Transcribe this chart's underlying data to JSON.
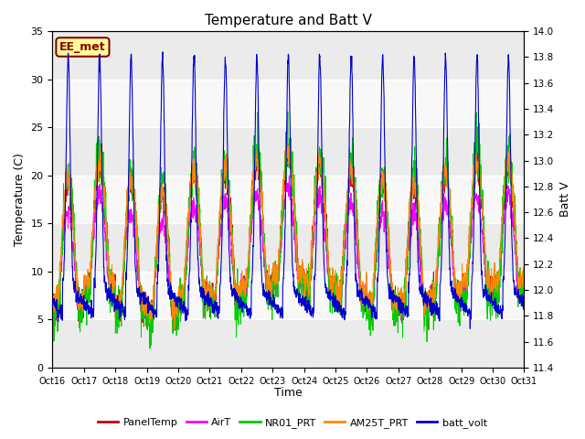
{
  "title": "Temperature and Batt V",
  "xlabel": "Time",
  "ylabel_left": "Temperature (C)",
  "ylabel_right": "Batt V",
  "annotation": "EE_met",
  "xlim": [
    0,
    15
  ],
  "ylim_left": [
    0,
    35
  ],
  "ylim_right": [
    11.4,
    14.0
  ],
  "xtick_labels": [
    "Oct 16",
    "Oct 17",
    "Oct 18",
    "Oct 19",
    "Oct 20",
    "Oct 21",
    "Oct 22",
    "Oct 23",
    "Oct 24",
    "Oct 25",
    "Oct 26",
    "Oct 27",
    "Oct 28",
    "Oct 29",
    "Oct 30",
    "Oct 31"
  ],
  "yticks_left": [
    0,
    5,
    10,
    15,
    20,
    25,
    30,
    35
  ],
  "yticks_right": [
    11.4,
    11.6,
    11.8,
    12.0,
    12.2,
    12.4,
    12.6,
    12.8,
    13.0,
    13.2,
    13.4,
    13.6,
    13.8,
    14.0
  ],
  "legend_entries": [
    "PanelTemp",
    "AirT",
    "NR01_PRT",
    "AM25T_PRT",
    "batt_volt"
  ],
  "legend_colors": [
    "#cc0000",
    "#ff00ff",
    "#00cc00",
    "#ff8800",
    "#0000cc"
  ],
  "band_color_a": "#ebebeb",
  "band_color_b": "#f8f8f8",
  "n_points": 2000
}
